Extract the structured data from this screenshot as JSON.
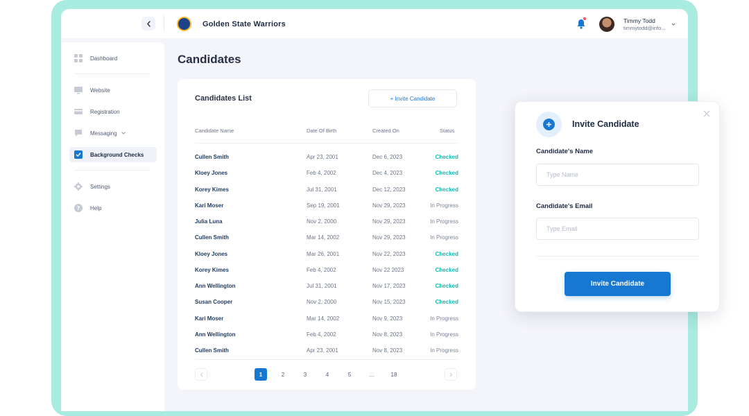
{
  "app": {
    "team_name": "Golden State Warriors",
    "user": {
      "name": "Timmy Todd",
      "email": "timmytodd@info..."
    },
    "notification_dot_color": "#ff4d4f"
  },
  "sidebar": {
    "items": [
      {
        "label": "Dashboard",
        "icon": "grid-icon"
      },
      {
        "label": "Website",
        "icon": "monitor-icon"
      },
      {
        "label": "Registration",
        "icon": "card-icon"
      },
      {
        "label": "Messaging",
        "icon": "chat-icon",
        "has_dropdown": true
      },
      {
        "label": "Background Checks",
        "icon": "checkbox-icon",
        "active": true
      },
      {
        "label": "Settings",
        "icon": "gear-icon"
      },
      {
        "label": "Help",
        "icon": "help-icon"
      }
    ]
  },
  "page": {
    "title": "Candidates"
  },
  "list": {
    "title": "Candidates List",
    "invite_button": "+ Invite Candidate",
    "columns": {
      "name": "Candidate Name",
      "dob": "Date Of Birth",
      "created": "Created On",
      "status": "Status"
    },
    "rows": [
      {
        "name": "Cullen Smith",
        "dob": "Apr 23, 2001",
        "created": "Dec 6, 2023",
        "status": "Checked"
      },
      {
        "name": "Kloey Jones",
        "dob": "Feb 4, 2002",
        "created": "Dec 4, 2023",
        "status": "Checked"
      },
      {
        "name": "Korey Kimes",
        "dob": "Jul 31, 2001",
        "created": "Dec 12, 2023",
        "status": "Checked"
      },
      {
        "name": "Kari Moser",
        "dob": "Sep 19, 2001",
        "created": "Nov 29, 2023",
        "status": "In Progress"
      },
      {
        "name": "Julia Luna",
        "dob": "Nov 2, 2000",
        "created": "Nov 29, 2023",
        "status": "In Progress"
      },
      {
        "name": "Cullen Smith",
        "dob": "Mar 14, 2002",
        "created": "Nov 29, 2023",
        "status": "In Progress"
      },
      {
        "name": "Kloey Jones",
        "dob": "Mar 26, 2001",
        "created": "Nov 22, 2023",
        "status": "Checked"
      },
      {
        "name": "Korey Kimes",
        "dob": "Feb 4, 2002",
        "created": "Nov 22 2023",
        "status": "Checked"
      },
      {
        "name": "Ann Wellington",
        "dob": "Jul 31, 2001",
        "created": "Nov 17, 2023",
        "status": "Checked"
      },
      {
        "name": "Susan Cooper",
        "dob": "Nov 2, 2000",
        "created": "Nov 15, 2023",
        "status": "Checked"
      },
      {
        "name": "Kari Moser",
        "dob": "Mar 14, 2002",
        "created": "Nov 9, 2023",
        "status": "In Progress"
      },
      {
        "name": "Ann Wellington",
        "dob": "Feb 4, 2002",
        "created": "Nov 8, 2023",
        "status": "In Progress"
      },
      {
        "name": "Cullen Smith",
        "dob": "Apr 23, 2001",
        "created": "Nov 8, 2023",
        "status": "In Progress"
      }
    ],
    "pagination": {
      "pages": [
        "1",
        "2",
        "3",
        "4",
        "5",
        "...",
        "18"
      ],
      "current": "1"
    }
  },
  "modal": {
    "title": "Invite Candidate",
    "name_label": "Candidate's Name",
    "name_placeholder": "Type Name",
    "name_value": "",
    "email_label": "Candidate's Email",
    "email_placeholder": "Type Email",
    "email_value": "",
    "submit_label": "Invite Candidate"
  },
  "colors": {
    "accent": "#1778d2",
    "checked": "#18b5b0",
    "frame": "#a8ebe0"
  }
}
